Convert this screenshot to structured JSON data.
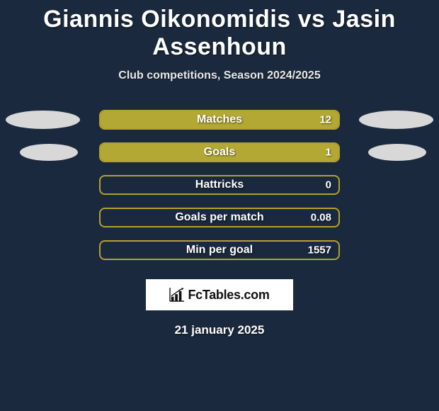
{
  "title": "Giannis Oikonomidis vs Jasin Assenhoun",
  "subtitle": "Club competitions, Season 2024/2025",
  "logo_text": "FcTables.com",
  "date": "21 january 2025",
  "colors": {
    "background": "#1a293d",
    "bar_border": "#b3a12f",
    "bar_left": "#b3a833",
    "bar_right": "transparent",
    "text": "#ffffff",
    "ellipse": "#d8d8d8"
  },
  "stats": [
    {
      "label": "Matches",
      "value": "12",
      "left_pct": 100,
      "show_left_ellipse": true,
      "show_right_ellipse": true,
      "left_small": false,
      "right_small": false
    },
    {
      "label": "Goals",
      "value": "1",
      "left_pct": 100,
      "show_left_ellipse": true,
      "show_right_ellipse": true,
      "left_small": true,
      "right_small": true
    },
    {
      "label": "Hattricks",
      "value": "0",
      "left_pct": 0,
      "show_left_ellipse": false,
      "show_right_ellipse": false,
      "left_small": false,
      "right_small": false
    },
    {
      "label": "Goals per match",
      "value": "0.08",
      "left_pct": 0,
      "show_left_ellipse": false,
      "show_right_ellipse": false,
      "left_small": false,
      "right_small": false
    },
    {
      "label": "Min per goal",
      "value": "1557",
      "left_pct": 0,
      "show_left_ellipse": false,
      "show_right_ellipse": false,
      "left_small": false,
      "right_small": false
    }
  ]
}
